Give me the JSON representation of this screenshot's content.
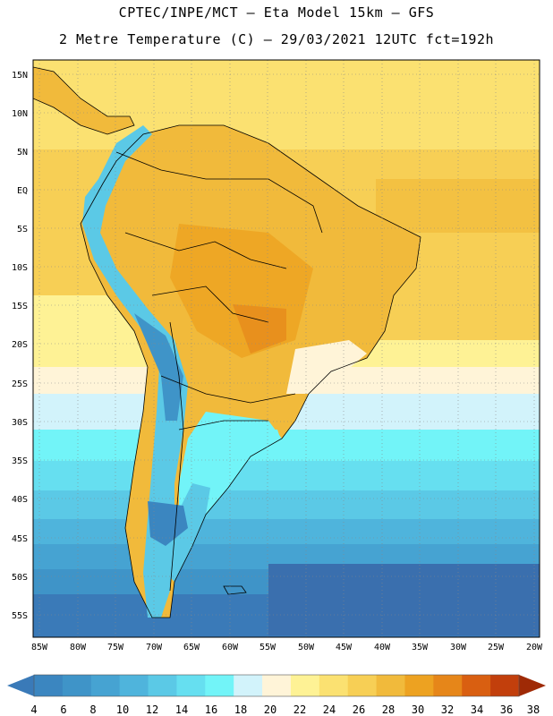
{
  "header": {
    "line1": "CPTEC/INPE/MCT –  Eta Model 15km – GFS",
    "line2": "2 Metre Temperature (C) – 29/03/2021 12UTC fct=192h"
  },
  "map": {
    "lat_ticks": [
      "15N",
      "10N",
      "5N",
      "EQ",
      "5S",
      "10S",
      "15S",
      "20S",
      "25S",
      "30S",
      "35S",
      "40S",
      "45S",
      "50S",
      "55S"
    ],
    "lon_ticks": [
      "85W",
      "80W",
      "75W",
      "70W",
      "65W",
      "60W",
      "55W",
      "50W",
      "45W",
      "40W",
      "35W",
      "30W",
      "25W",
      "20W"
    ]
  },
  "colorbar": {
    "labels": [
      "4",
      "6",
      "8",
      "10",
      "12",
      "14",
      "16",
      "18",
      "20",
      "22",
      "24",
      "26",
      "28",
      "30",
      "32",
      "34",
      "36",
      "38"
    ],
    "colors": [
      "#3a7ab8",
      "#3b86c0",
      "#3f94c8",
      "#46a3d2",
      "#4fb4dc",
      "#5bc9e6",
      "#66dff0",
      "#72f4f8",
      "#d2f3fb",
      "#fff4d8",
      "#fef295",
      "#fbe171",
      "#f7cf55",
      "#f1ba3b",
      "#eda221",
      "#e68619",
      "#d95f11",
      "#c23f0c",
      "#9f2a06"
    ]
  }
}
